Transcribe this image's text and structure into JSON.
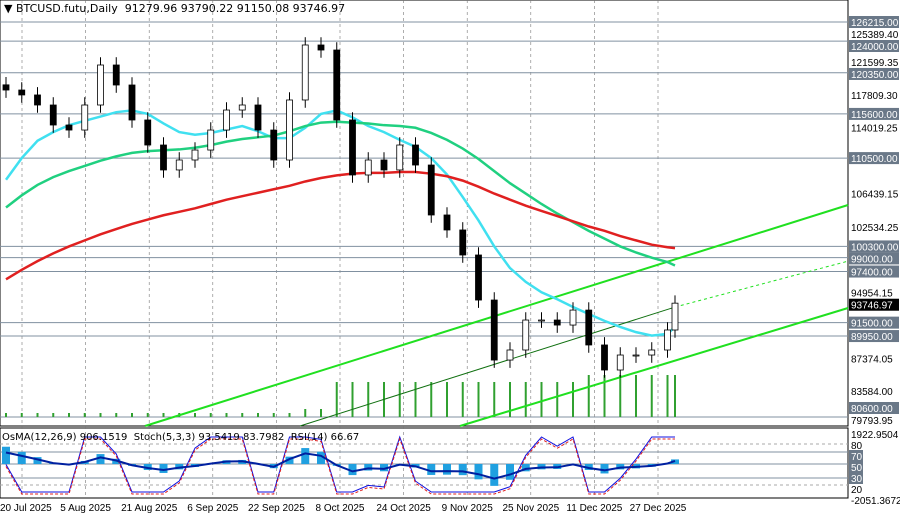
{
  "header": {
    "symbol": "BTCUSD.futu,Daily",
    "ohlc": "91279.96 93790.22 91150.08 93746.97"
  },
  "oscillator_header": {
    "osma": "OsMA(12,26,9) 906.1519",
    "stoch": "Stoch(5,3,3) 93.5419 83.7982",
    "rsi": "RSI(14) 66.67"
  },
  "chart_data": {
    "type": "candlestick",
    "title": "BTCUSD.futu,Daily",
    "x": [
      "16 Jul 2025",
      "20 Jul 2025",
      "24 Jul 2025",
      "28 Jul 2025",
      "1 Aug 2025",
      "5 Aug 2025",
      "9 Aug 2025",
      "13 Aug 2025",
      "17 Aug 2025",
      "21 Aug 2025",
      "25 Aug 2025",
      "29 Aug 2025",
      "2 Sep 2025",
      "6 Sep 2025",
      "10 Sep 2025",
      "14 Sep 2025",
      "18 Sep 2025",
      "22 Sep 2025",
      "26 Sep 2025",
      "30 Sep 2025",
      "4 Oct 2025",
      "8 Oct 2025",
      "12 Oct 2025",
      "16 Oct 2025",
      "20 Oct 2025",
      "24 Oct 2025",
      "28 Oct 2025",
      "1 Nov 2025",
      "5 Nov 2025",
      "9 Nov 2025",
      "13 Nov 2025",
      "17 Nov 2025",
      "21 Nov 2025",
      "25 Nov 2025",
      "29 Nov 2025",
      "3 Dec 2025",
      "7 Dec 2025",
      "11 Dec 2025",
      "15 Dec 2025",
      "19 Dec 2025",
      "23 Dec 2025",
      "27 Dec 2025",
      "31 Dec 2025",
      "2 Jan 2026"
    ],
    "close": [
      118360,
      117790,
      116630,
      114320,
      113740,
      116630,
      121250,
      118940,
      114900,
      112010,
      109130,
      110280,
      111430,
      113740,
      116050,
      116630,
      113740,
      110280,
      117210,
      123560,
      122980,
      114900,
      108550,
      110280,
      109130,
      112010,
      109700,
      103930,
      102200,
      99310,
      94110,
      87180,
      88340,
      91800,
      91800,
      91220,
      92950,
      88920,
      86030,
      87760,
      87760,
      88340,
      90650,
      93746.97
    ],
    "series": [
      {
        "type": "ma-fast",
        "color": "#40e0f0",
        "values": [
          108000,
          110500,
          112500,
          113500,
          114300,
          114800,
          115300,
          115800,
          116000,
          115600,
          114500,
          113500,
          113200,
          113400,
          113800,
          114200,
          113600,
          112800,
          112800,
          114000,
          115600,
          116000,
          115200,
          114200,
          113500,
          112600,
          111800,
          110500,
          108600,
          106000,
          103300,
          100300,
          97800,
          96200,
          95000,
          94200,
          93300,
          92500,
          91700,
          91000,
          90400,
          90000,
          90200,
          91000
        ]
      },
      {
        "type": "ma-mid",
        "color": "#20d080",
        "values": [
          104800,
          106200,
          107400,
          108300,
          109000,
          109600,
          110200,
          110700,
          111100,
          111300,
          111400,
          111500,
          111700,
          112000,
          112400,
          112700,
          112900,
          113100,
          113600,
          114200,
          114600,
          114700,
          114600,
          114500,
          114300,
          114200,
          114000,
          113400,
          112600,
          111600,
          110400,
          109000,
          107600,
          106400,
          105200,
          104100,
          103100,
          102100,
          101200,
          100300,
          99600,
          99000,
          98500,
          98100
        ]
      },
      {
        "type": "ma-slow",
        "color": "#e02020",
        "values": [
          96500,
          97600,
          98600,
          99500,
          100300,
          101000,
          101700,
          102300,
          102900,
          103400,
          103900,
          104300,
          104700,
          105200,
          105700,
          106100,
          106500,
          106900,
          107300,
          107800,
          108200,
          108500,
          108700,
          108800,
          108800,
          108900,
          108900,
          108700,
          108400,
          107900,
          107200,
          106400,
          105700,
          105000,
          104400,
          103800,
          103200,
          102600,
          102100,
          101500,
          101000,
          100500,
          100200,
          100100
        ]
      }
    ],
    "price_levels": [
      126215.0,
      124000.0,
      120350.0,
      115600.0,
      110500.0,
      100300.0,
      99000.0,
      97400.0,
      91500.0,
      89950.0,
      80600.0
    ],
    "current_price": 93746.97,
    "y_ticks": [
      "126215.00",
      "125389.40",
      "124000.00",
      "121599.35",
      "120350.00",
      "117809.30",
      "115600.00",
      "114019.25",
      "110500.00",
      "106439.15",
      "102534.25",
      "100300.00",
      "99000.00",
      "97400.00",
      "94954.15",
      "93746.97",
      "91500.00",
      "89950.00",
      "87374.05",
      "83584.00",
      "80600.00",
      "79793.95"
    ],
    "x_ticks": [
      "20 Jul 2025",
      "5 Aug 2025",
      "21 Aug 2025",
      "6 Sep 2025",
      "22 Sep 2025",
      "8 Oct 2025",
      "24 Oct 2025",
      "9 Nov 2025",
      "25 Nov 2025",
      "11 Dec 2025",
      "27 Dec 2025"
    ],
    "oscillator_ticks": [
      "1922.9504",
      "80",
      "70",
      "50",
      "30",
      "20",
      "-2051.3672"
    ],
    "ylim": [
      79793.95,
      127000
    ],
    "grid": true
  },
  "colors": {
    "candle": "#000000",
    "channel": "#20e020",
    "level_line": "#8090a0",
    "label_bg": "#6a7888",
    "current_bg": "#000000"
  }
}
